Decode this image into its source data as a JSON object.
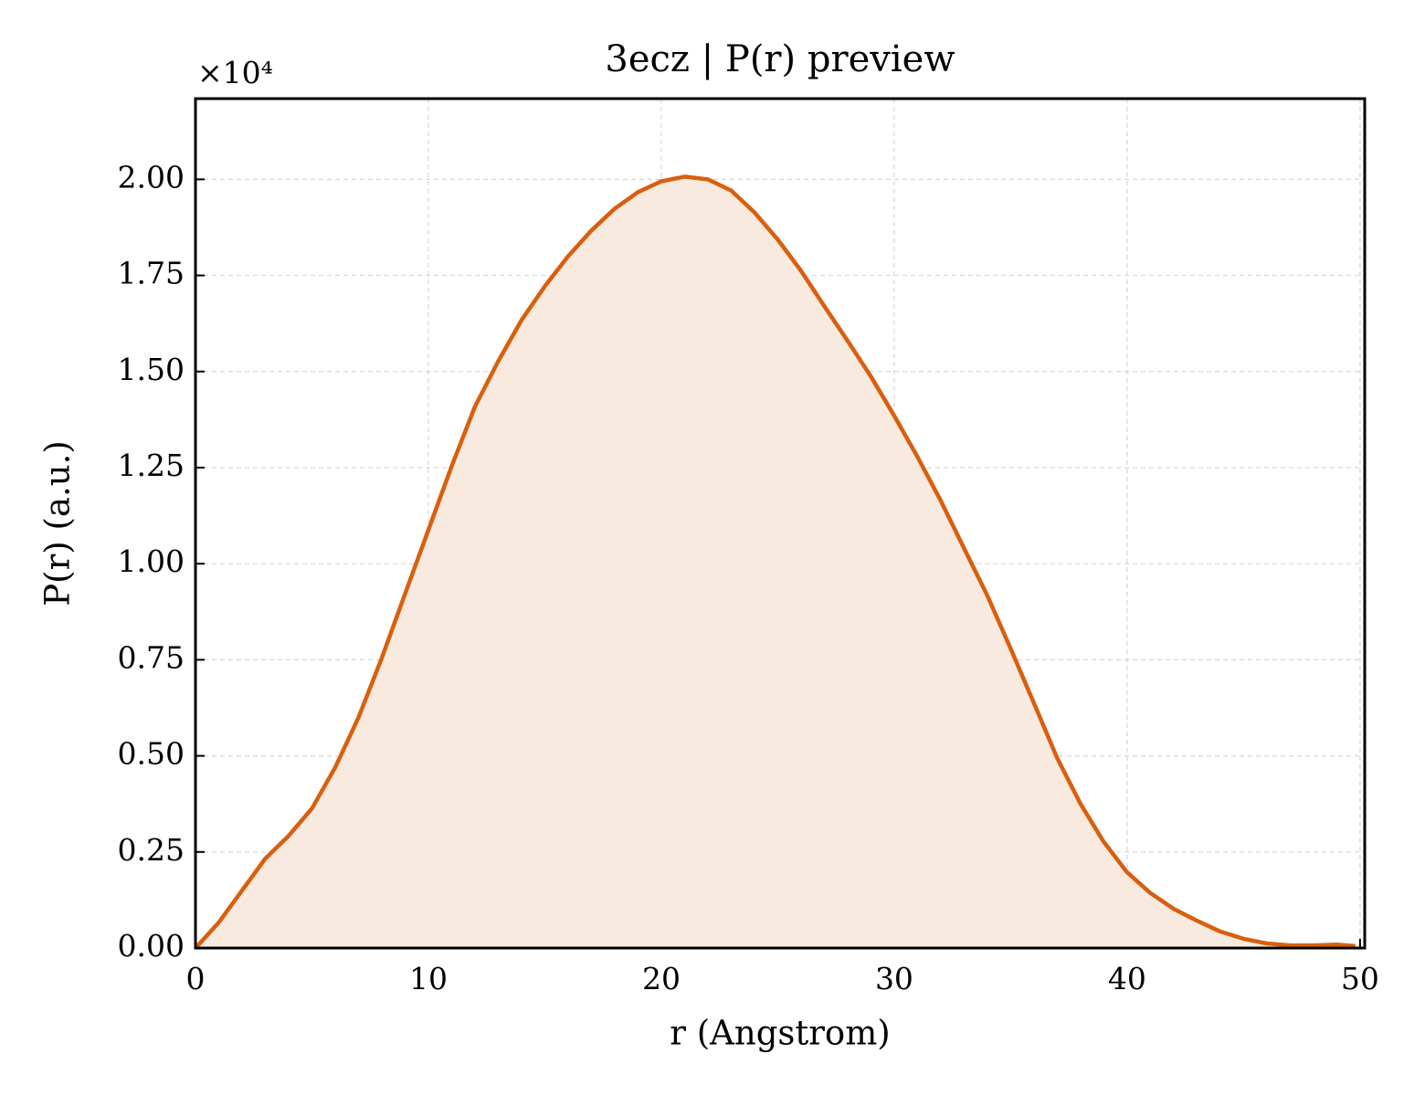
{
  "chart_data": {
    "type": "line",
    "title": "3ecz | P(r) preview",
    "x_label": "r (Angstrom)",
    "y_label": "P(r) (a.u.)",
    "y_offset_label": "×10⁴",
    "x": [
      0,
      1,
      2,
      3,
      4,
      5,
      6,
      7,
      8,
      9,
      10,
      11,
      12,
      13,
      14,
      15,
      16,
      17,
      18,
      19,
      20,
      21,
      22,
      23,
      24,
      25,
      26,
      27,
      28,
      29,
      30,
      31,
      32,
      33,
      34,
      35,
      36,
      37,
      38,
      39,
      40,
      41,
      42,
      43,
      44,
      45,
      46,
      47,
      48,
      49,
      49.8
    ],
    "series": [
      {
        "name": "P(r)",
        "color": "#d95f0e",
        "fill": "#f9eadf",
        "values": [
          0,
          665,
          1500,
          2330,
          2920,
          3630,
          4700,
          6000,
          7550,
          9220,
          10880,
          12540,
          14090,
          15270,
          16340,
          17220,
          18000,
          18670,
          19240,
          19670,
          19950,
          20070,
          20000,
          19710,
          19140,
          18430,
          17620,
          16700,
          15800,
          14870,
          13850,
          12780,
          11640,
          10400,
          9170,
          7790,
          6370,
          4940,
          3750,
          2760,
          1970,
          1430,
          1020,
          710,
          430,
          240,
          120,
          70,
          70,
          90,
          50
        ]
      }
    ],
    "xlim": [
      0,
      50.2
    ],
    "xticks": [
      0,
      10,
      20,
      30,
      40,
      50
    ],
    "ylim": [
      0,
      22100
    ],
    "yticks": [
      {
        "value": 0,
        "label": "0.00"
      },
      {
        "value": 2500,
        "label": "0.25"
      },
      {
        "value": 5000,
        "label": "0.50"
      },
      {
        "value": 7500,
        "label": "0.75"
      },
      {
        "value": 10000,
        "label": "1.00"
      },
      {
        "value": 12500,
        "label": "1.25"
      },
      {
        "value": 15000,
        "label": "1.50"
      },
      {
        "value": 17500,
        "label": "1.75"
      },
      {
        "value": 20000,
        "label": "2.00"
      }
    ],
    "grid": true
  }
}
